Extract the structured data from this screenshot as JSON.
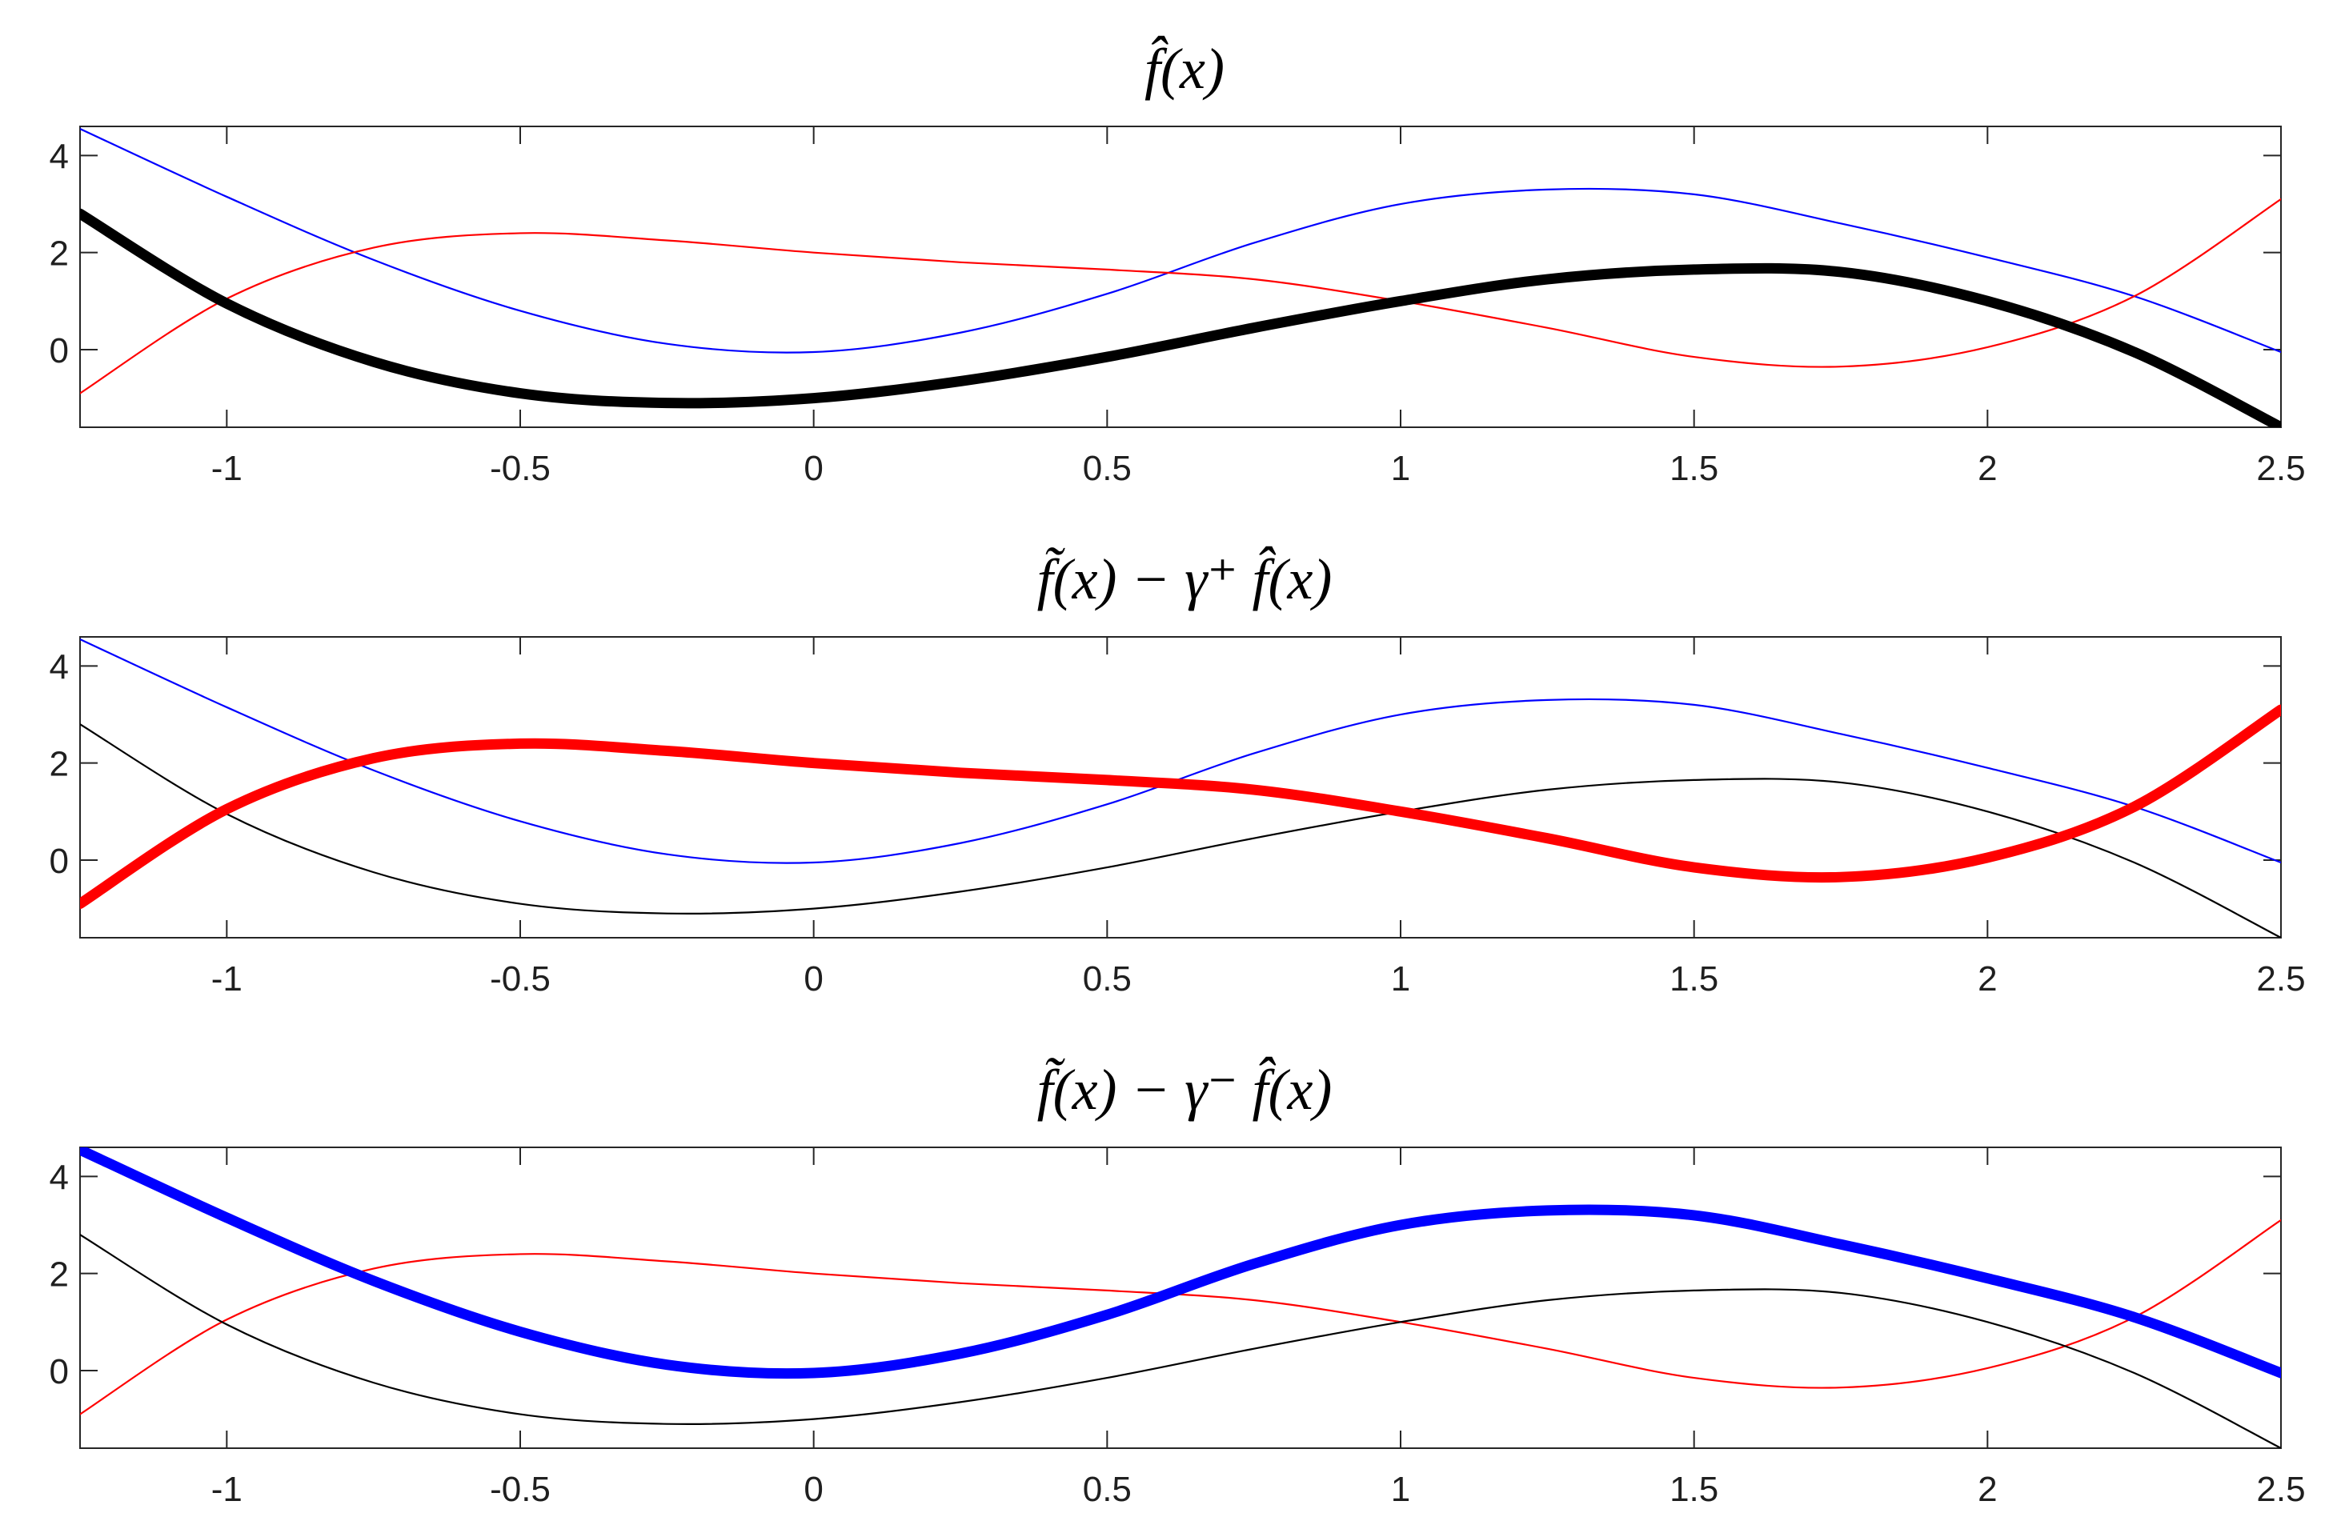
{
  "chart_data": [
    {
      "type": "line",
      "title": "f̂(x)",
      "xlabel": "",
      "ylabel": "",
      "xlim": [
        -1.25,
        2.5
      ],
      "ylim": [
        -1.6,
        4.6
      ],
      "xticks": [
        -1,
        -0.5,
        0,
        0.5,
        1,
        1.5,
        2,
        2.5
      ],
      "xtick_labels": [
        "-1",
        "-0.5",
        "0",
        "0.5",
        "1",
        "1.5",
        "2",
        "2.5"
      ],
      "yticks": [
        0,
        2,
        4
      ],
      "ytick_labels": [
        "0",
        "2",
        "4"
      ],
      "grid": false,
      "highlight": "black",
      "series": [
        {
          "color": "#0000ff",
          "x": [
            -1.25,
            -1.0,
            -0.75,
            -0.5,
            -0.25,
            0.0,
            0.25,
            0.5,
            0.75,
            1.0,
            1.25,
            1.5,
            1.75,
            2.0,
            2.25,
            2.5
          ],
          "y": [
            4.55,
            3.15,
            1.85,
            0.8,
            0.12,
            -0.05,
            0.35,
            1.15,
            2.2,
            3.0,
            3.3,
            3.2,
            2.6,
            1.9,
            1.1,
            -0.05
          ]
        },
        {
          "color": "#ff0000",
          "x": [
            -1.25,
            -1.0,
            -0.75,
            -0.5,
            -0.25,
            0.0,
            0.25,
            0.5,
            0.75,
            1.0,
            1.25,
            1.5,
            1.75,
            2.0,
            2.25,
            2.5
          ],
          "y": [
            -0.9,
            1.05,
            2.1,
            2.4,
            2.25,
            2.0,
            1.8,
            1.65,
            1.45,
            1.0,
            0.45,
            -0.15,
            -0.35,
            0.05,
            1.1,
            3.1
          ]
        },
        {
          "color": "#000000",
          "x": [
            -1.25,
            -1.0,
            -0.75,
            -0.5,
            -0.25,
            0.0,
            0.25,
            0.5,
            0.75,
            1.0,
            1.25,
            1.5,
            1.75,
            2.0,
            2.25,
            2.5
          ],
          "y": [
            2.8,
            0.95,
            -0.25,
            -0.9,
            -1.1,
            -1.0,
            -0.65,
            -0.15,
            0.45,
            1.0,
            1.45,
            1.65,
            1.6,
            1.0,
            -0.05,
            -1.6
          ]
        }
      ]
    },
    {
      "type": "line",
      "title": "f̃(x) − γ⁺ f̂(x)",
      "xlabel": "",
      "ylabel": "",
      "xlim": [
        -1.25,
        2.5
      ],
      "ylim": [
        -1.6,
        4.6
      ],
      "xticks": [
        -1,
        -0.5,
        0,
        0.5,
        1,
        1.5,
        2,
        2.5
      ],
      "xtick_labels": [
        "-1",
        "-0.5",
        "0",
        "0.5",
        "1",
        "1.5",
        "2",
        "2.5"
      ],
      "yticks": [
        0,
        2,
        4
      ],
      "ytick_labels": [
        "0",
        "2",
        "4"
      ],
      "grid": false,
      "highlight": "red",
      "series": [
        {
          "color": "#0000ff",
          "x": [
            -1.25,
            -1.0,
            -0.75,
            -0.5,
            -0.25,
            0.0,
            0.25,
            0.5,
            0.75,
            1.0,
            1.25,
            1.5,
            1.75,
            2.0,
            2.25,
            2.5
          ],
          "y": [
            4.55,
            3.15,
            1.85,
            0.8,
            0.12,
            -0.05,
            0.35,
            1.15,
            2.2,
            3.0,
            3.3,
            3.2,
            2.6,
            1.9,
            1.1,
            -0.05
          ]
        },
        {
          "color": "#000000",
          "x": [
            -1.25,
            -1.0,
            -0.75,
            -0.5,
            -0.25,
            0.0,
            0.25,
            0.5,
            0.75,
            1.0,
            1.25,
            1.5,
            1.75,
            2.0,
            2.25,
            2.5
          ],
          "y": [
            2.8,
            0.95,
            -0.25,
            -0.9,
            -1.1,
            -1.0,
            -0.65,
            -0.15,
            0.45,
            1.0,
            1.45,
            1.65,
            1.6,
            1.0,
            -0.05,
            -1.6
          ]
        },
        {
          "color": "#ff0000",
          "x": [
            -1.25,
            -1.0,
            -0.75,
            -0.5,
            -0.25,
            0.0,
            0.25,
            0.5,
            0.75,
            1.0,
            1.25,
            1.5,
            1.75,
            2.0,
            2.25,
            2.5
          ],
          "y": [
            -0.9,
            1.05,
            2.1,
            2.4,
            2.25,
            2.0,
            1.8,
            1.65,
            1.45,
            1.0,
            0.45,
            -0.15,
            -0.35,
            0.05,
            1.1,
            3.1
          ]
        }
      ]
    },
    {
      "type": "line",
      "title": "f̃(x) − γ⁻ f̂(x)",
      "xlabel": "",
      "ylabel": "",
      "xlim": [
        -1.25,
        2.5
      ],
      "ylim": [
        -1.6,
        4.6
      ],
      "xticks": [
        -1,
        -0.5,
        0,
        0.5,
        1,
        1.5,
        2,
        2.5
      ],
      "xtick_labels": [
        "-1",
        "-0.5",
        "0",
        "0.5",
        "1",
        "1.5",
        "2",
        "2.5"
      ],
      "yticks": [
        0,
        2,
        4
      ],
      "ytick_labels": [
        "0",
        "2",
        "4"
      ],
      "grid": false,
      "highlight": "blue",
      "series": [
        {
          "color": "#ff0000",
          "x": [
            -1.25,
            -1.0,
            -0.75,
            -0.5,
            -0.25,
            0.0,
            0.25,
            0.5,
            0.75,
            1.0,
            1.25,
            1.5,
            1.75,
            2.0,
            2.25,
            2.5
          ],
          "y": [
            -0.9,
            1.05,
            2.1,
            2.4,
            2.25,
            2.0,
            1.8,
            1.65,
            1.45,
            1.0,
            0.45,
            -0.15,
            -0.35,
            0.05,
            1.1,
            3.1
          ]
        },
        {
          "color": "#000000",
          "x": [
            -1.25,
            -1.0,
            -0.75,
            -0.5,
            -0.25,
            0.0,
            0.25,
            0.5,
            0.75,
            1.0,
            1.25,
            1.5,
            1.75,
            2.0,
            2.25,
            2.5
          ],
          "y": [
            2.8,
            0.95,
            -0.25,
            -0.9,
            -1.1,
            -1.0,
            -0.65,
            -0.15,
            0.45,
            1.0,
            1.45,
            1.65,
            1.6,
            1.0,
            -0.05,
            -1.6
          ]
        },
        {
          "color": "#0000ff",
          "x": [
            -1.25,
            -1.0,
            -0.75,
            -0.5,
            -0.25,
            0.0,
            0.25,
            0.5,
            0.75,
            1.0,
            1.25,
            1.5,
            1.75,
            2.0,
            2.25,
            2.5
          ],
          "y": [
            4.55,
            3.15,
            1.85,
            0.8,
            0.12,
            -0.05,
            0.35,
            1.15,
            2.2,
            3.0,
            3.3,
            3.2,
            2.6,
            1.9,
            1.1,
            -0.05
          ]
        }
      ]
    }
  ]
}
